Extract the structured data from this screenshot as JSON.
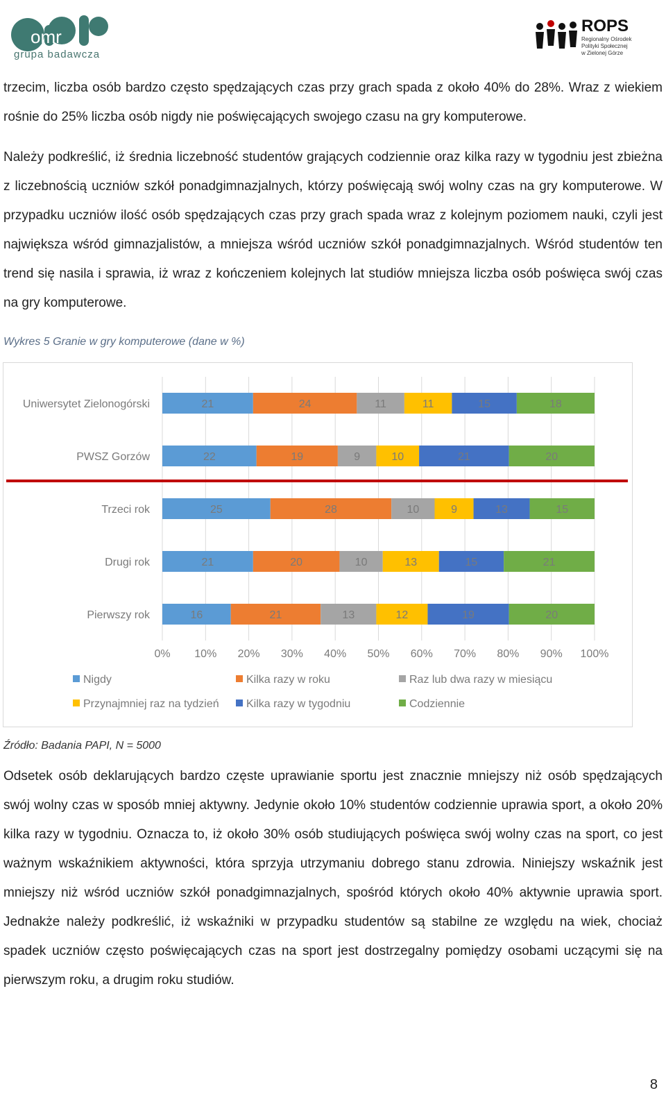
{
  "header": {
    "logo_left_text": "grupa badawcza",
    "logo_left_letters": "omr",
    "logo_right_title": "ROPS",
    "logo_right_subtitle_lines": [
      "Regionalny Ośrodek",
      "Polityki Społecznej",
      "w Zielonej Górze"
    ]
  },
  "paragraphs": {
    "p1": "trzecim, liczba osób bardzo często spędzających czas przy grach spada z około 40% do 28%. Wraz z wiekiem rośnie do 25% liczba osób nigdy nie poświęcających swojego czasu na gry komputerowe.",
    "p2": "Należy podkreślić, iż średnia liczebność studentów grających codziennie oraz kilka razy w tygodniu jest zbieżna z liczebnością uczniów szkół ponadgimnazjalnych, którzy poświęcają swój wolny czas na gry komputerowe. W przypadku uczniów ilość osób spędzających czas przy grach spada wraz z kolejnym poziomem nauki, czyli jest największa wśród gimnazjalistów, a mniejsza wśród uczniów szkół ponadgimnazjalnych. Wśród studentów ten trend się nasila i sprawia, iż wraz z kończeniem kolejnych lat studiów mniejsza liczba osób poświęca swój czas na gry komputerowe.",
    "p3": "Odsetek osób deklarujących bardzo częste uprawianie sportu jest znacznie mniejszy niż osób spędzających swój wolny czas w sposób mniej aktywny. Jedynie około 10% studentów codziennie uprawia sport, a około 20% kilka razy w tygodniu. Oznacza to, iż około 30% osób studiujących poświęca swój wolny czas na sport, co jest ważnym wskaźnikiem aktywności, która sprzyja utrzymaniu dobrego stanu zdrowia. Niniejszy wskaźnik jest mniejszy niż wśród uczniów szkół ponadgimnazjalnych, spośród których około 40% aktywnie uprawia sport. Jednakże należy podkreślić, iż wskaźniki w przypadku studentów są stabilne ze względu na wiek, chociaż spadek uczniów często poświęcających czas na sport jest dostrzegalny pomiędzy osobami uczącymi się na pierwszym roku, a drugim roku studiów."
  },
  "chart_caption": "Wykres 5 Granie w gry komputerowe  (dane w %)",
  "source": "Źródło: Badania PAPI, N = 5000",
  "page_number": "8",
  "chart_data": {
    "type": "bar",
    "orientation": "horizontal",
    "stacked": "100%",
    "categories": [
      "Uniwersytet Zielonogórski",
      "PWSZ Gorzów",
      "Trzeci rok",
      "Drugi rok",
      "Pierwszy rok"
    ],
    "series": [
      {
        "name": "Nigdy",
        "color": "#5b9bd5",
        "values": [
          21,
          22,
          25,
          21,
          16
        ]
      },
      {
        "name": "Kilka razy w roku",
        "color": "#ed7d31",
        "values": [
          24,
          19,
          28,
          20,
          21
        ]
      },
      {
        "name": "Raz lub dwa razy w miesiącu",
        "color": "#a5a5a5",
        "values": [
          11,
          9,
          10,
          10,
          13
        ]
      },
      {
        "name": "Przynajmniej raz na tydzień",
        "color": "#ffc000",
        "values": [
          11,
          10,
          9,
          13,
          12
        ]
      },
      {
        "name": "Kilka razy w tygodniu",
        "color": "#4472c4",
        "values": [
          15,
          21,
          13,
          15,
          19
        ]
      },
      {
        "name": "Codziennie",
        "color": "#70ad47",
        "values": [
          18,
          20,
          15,
          21,
          20
        ]
      }
    ],
    "x_ticks": [
      "0%",
      "10%",
      "20%",
      "30%",
      "40%",
      "50%",
      "60%",
      "70%",
      "80%",
      "90%",
      "100%"
    ],
    "xlim": [
      0,
      100
    ],
    "grid": true,
    "legend_position": "bottom",
    "separator_after_category": "PWSZ Gorzów",
    "separator_color": "#c00000"
  }
}
